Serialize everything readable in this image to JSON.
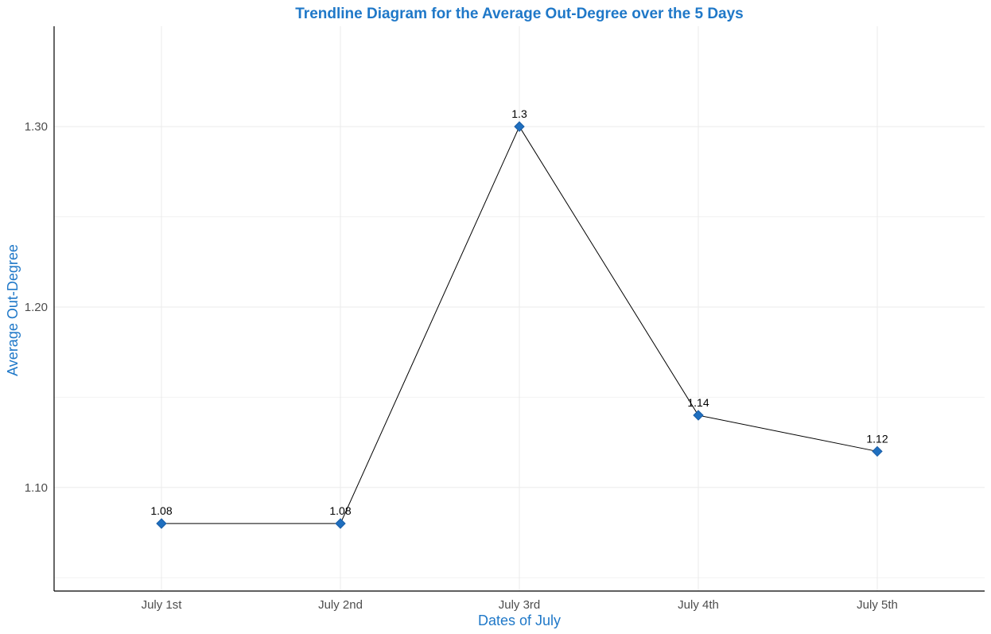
{
  "chart_data": {
    "type": "line",
    "title": "Trendline Diagram for the Average Out-Degree over the 5 Days",
    "xlabel": "Dates of July",
    "ylabel": "Average Out-Degree",
    "categories": [
      "July 1st",
      "July 2nd",
      "July 3rd",
      "July 4th",
      "July 5th"
    ],
    "values": [
      1.08,
      1.08,
      1.3,
      1.14,
      1.12
    ],
    "data_labels": [
      "1.08",
      "1.08",
      "1.3",
      "1.14",
      "1.12"
    ],
    "y_ticks": [
      1.1,
      1.2,
      1.3
    ],
    "y_tick_labels": [
      "1.10",
      "1.20",
      "1.30"
    ],
    "y_minor_ticks": [
      1.05,
      1.15,
      1.25
    ],
    "ylim": [
      1.0426,
      1.3556
    ],
    "grid": true,
    "legend": "none",
    "marker": "diamond",
    "colors": {
      "title": "#1f78c8",
      "axis_label": "#1f78c8",
      "tick_label": "#4d4d4d",
      "marker": "#1f6fbf",
      "line": "#000000"
    }
  }
}
